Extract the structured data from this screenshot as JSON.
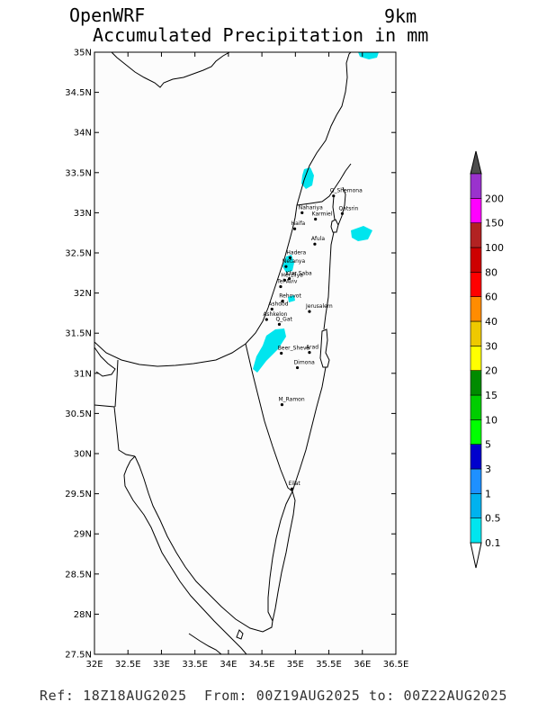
{
  "header": {
    "title_model": "OpenWRF",
    "title_resolution": "9km",
    "title_field": "Accumulated Precipitation in mm"
  },
  "footer": {
    "text": "Ref: 18Z18AUG2025  From: 00Z19AUG2025 to: 00Z22AUG2025"
  },
  "map": {
    "lon_range": [
      32,
      36.5
    ],
    "lat_range": [
      27.5,
      35
    ],
    "lon_ticks": [
      "32E",
      "32.5E",
      "33E",
      "33.5E",
      "34E",
      "34.5E",
      "35E",
      "35.5E",
      "36E",
      "36.5E"
    ],
    "lat_ticks": [
      "27.5N",
      "28N",
      "28.5N",
      "29N",
      "29.5N",
      "30N",
      "30.5N",
      "31N",
      "31.5N",
      "32N",
      "32.5N",
      "33N",
      "33.5N",
      "34N",
      "34.5N",
      "35N"
    ],
    "background_color": "#fcfcfc",
    "coastline_color": "#000000"
  },
  "cities": [
    {
      "name": "Q_Shemona",
      "lon": 35.57,
      "lat": 33.21
    },
    {
      "name": "Nahariya",
      "lon": 35.1,
      "lat": 33.0
    },
    {
      "name": "Karmiel",
      "lon": 35.3,
      "lat": 32.92
    },
    {
      "name": "Qatsrin",
      "lon": 35.7,
      "lat": 32.99
    },
    {
      "name": "Haifa",
      "lon": 34.99,
      "lat": 32.8
    },
    {
      "name": "Afula",
      "lon": 35.29,
      "lat": 32.61
    },
    {
      "name": "Hadera",
      "lon": 34.92,
      "lat": 32.44
    },
    {
      "name": "Netanya",
      "lon": 34.86,
      "lat": 32.33
    },
    {
      "name": "Kfar Saba",
      "lon": 34.91,
      "lat": 32.18
    },
    {
      "name": "Herzliya",
      "lon": 34.84,
      "lat": 32.16
    },
    {
      "name": "Tel Aviv",
      "lon": 34.78,
      "lat": 32.08
    },
    {
      "name": "Rehovot",
      "lon": 34.81,
      "lat": 31.9
    },
    {
      "name": "Ashdod",
      "lon": 34.65,
      "lat": 31.8
    },
    {
      "name": "Ashkelon",
      "lon": 34.57,
      "lat": 31.67
    },
    {
      "name": "Q_Gat",
      "lon": 34.76,
      "lat": 31.61
    },
    {
      "name": "Jerusalem",
      "lon": 35.21,
      "lat": 31.77
    },
    {
      "name": "Beer_Sheva",
      "lon": 34.79,
      "lat": 31.25
    },
    {
      "name": "Arad",
      "lon": 35.21,
      "lat": 31.26
    },
    {
      "name": "Dimona",
      "lon": 35.03,
      "lat": 31.07
    },
    {
      "name": "M_Ramon",
      "lon": 34.8,
      "lat": 30.61
    },
    {
      "name": "Eilat",
      "lon": 34.95,
      "lat": 29.56
    }
  ],
  "legend": {
    "levels": [
      {
        "label": "0.1",
        "color": "#00e5ee"
      },
      {
        "label": "0.5",
        "color": "#00b2ee"
      },
      {
        "label": "1",
        "color": "#1e90ff"
      },
      {
        "label": "3",
        "color": "#0000cd"
      },
      {
        "label": "5",
        "color": "#00ff00"
      },
      {
        "label": "10",
        "color": "#00cd00"
      },
      {
        "label": "15",
        "color": "#008b00"
      },
      {
        "label": "20",
        "color": "#ffff00"
      },
      {
        "label": "30",
        "color": "#eec900"
      },
      {
        "label": "40",
        "color": "#ff8c00"
      },
      {
        "label": "60",
        "color": "#ff0000"
      },
      {
        "label": "80",
        "color": "#cd0000"
      },
      {
        "label": "100",
        "color": "#b22222"
      },
      {
        "label": "150",
        "color": "#ff00ff"
      },
      {
        "label": "200",
        "color": "#9a32cd"
      }
    ],
    "top_arrow_color": "#4d4d4d",
    "bottom_arrow_color": "#ffffff"
  },
  "precip_areas_color": "#00e5ee"
}
